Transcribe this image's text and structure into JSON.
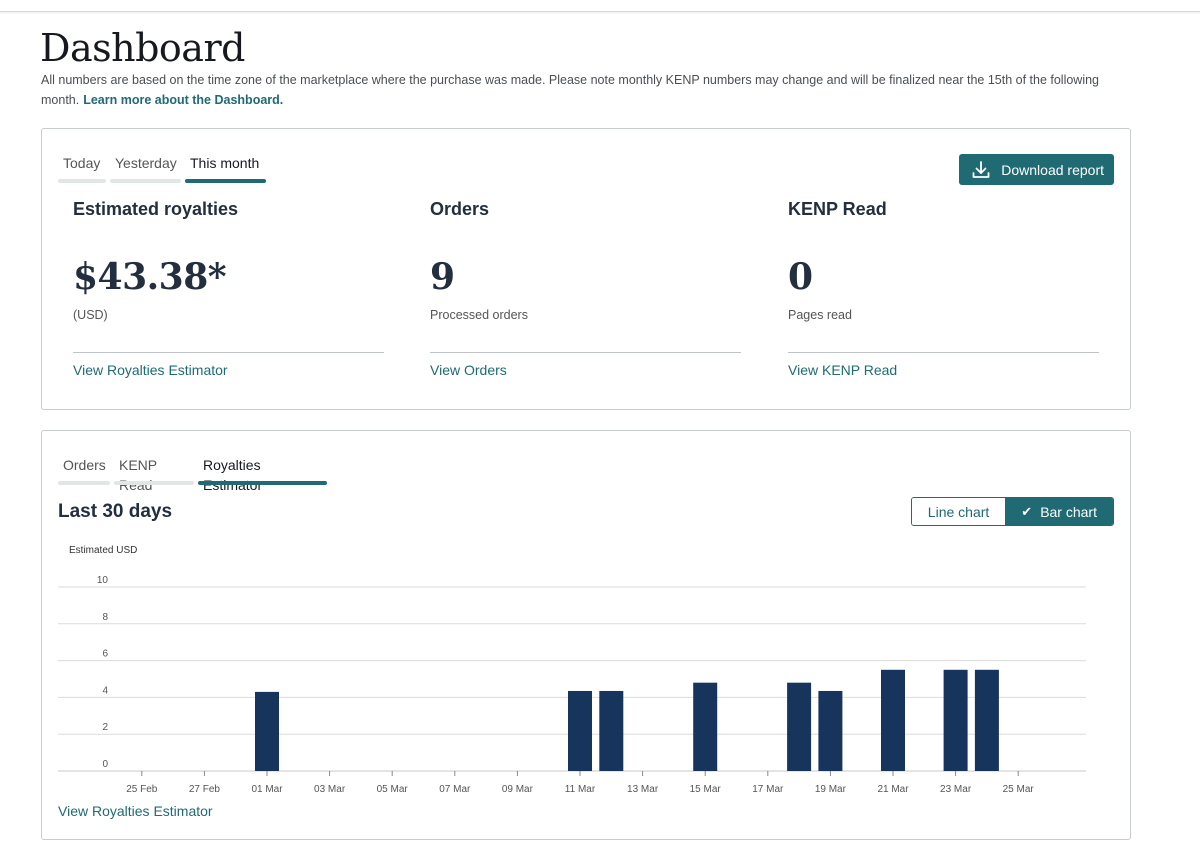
{
  "page": {
    "title": "Dashboard",
    "intro_text": "All numbers are based on the time zone of the marketplace where the purchase was made. Please note monthly KENP numbers may change and will be finalized near the 15th of the following month.",
    "intro_link": "Learn more about the Dashboard."
  },
  "summary": {
    "tabs": [
      {
        "label": "Today",
        "active": false
      },
      {
        "label": "Yesterday",
        "active": false
      },
      {
        "label": "This month",
        "active": true
      }
    ],
    "download_label": "Download report",
    "metrics": [
      {
        "title": "Estimated royalties",
        "value": "$43.38*",
        "sub": "(USD)",
        "link": "View Royalties Estimator"
      },
      {
        "title": "Orders",
        "value": "9",
        "sub": "Processed orders",
        "link": "View Orders"
      },
      {
        "title": "KENP Read",
        "value": "0",
        "sub": "Pages read",
        "link": "View KENP Read"
      }
    ]
  },
  "chart_panel": {
    "tabs": [
      {
        "label": "Orders",
        "active": false
      },
      {
        "label": "KENP Read",
        "active": false
      },
      {
        "label": "Royalties Estimator",
        "active": true
      }
    ],
    "title": "Last 30 days",
    "toggle": {
      "line_label": "Line chart",
      "bar_label": "Bar chart",
      "selected": "bar",
      "check_icon": "check-icon"
    },
    "link": "View Royalties Estimator"
  },
  "colors": {
    "accent": "#1f6a73",
    "bar": "#17355c",
    "grid": "#d9dcde"
  },
  "chart_data": {
    "type": "bar",
    "ylabel": "Estimated USD",
    "ylim": [
      0,
      10
    ],
    "yticks": [
      0,
      2,
      4,
      6,
      8,
      10
    ],
    "grid": true,
    "categories": [
      "24 Feb",
      "25 Feb",
      "26 Feb",
      "27 Feb",
      "28 Feb",
      "01 Mar",
      "02 Mar",
      "03 Mar",
      "04 Mar",
      "05 Mar",
      "06 Mar",
      "07 Mar",
      "08 Mar",
      "09 Mar",
      "10 Mar",
      "11 Mar",
      "12 Mar",
      "13 Mar",
      "14 Mar",
      "15 Mar",
      "16 Mar",
      "17 Mar",
      "18 Mar",
      "19 Mar",
      "20 Mar",
      "21 Mar",
      "22 Mar",
      "23 Mar",
      "24 Mar",
      "25 Mar"
    ],
    "values": [
      0,
      0,
      0,
      0,
      0,
      4.3,
      0,
      0,
      0,
      0,
      0,
      0,
      0,
      0,
      0,
      4.35,
      4.35,
      0,
      0,
      4.8,
      0,
      0,
      4.8,
      4.35,
      0,
      5.5,
      0,
      5.5,
      5.5,
      0
    ],
    "xtick_labels": [
      "25 Feb",
      "27 Feb",
      "01 Mar",
      "03 Mar",
      "05 Mar",
      "07 Mar",
      "09 Mar",
      "11 Mar",
      "13 Mar",
      "15 Mar",
      "17 Mar",
      "19 Mar",
      "21 Mar",
      "23 Mar",
      "25 Mar"
    ]
  }
}
